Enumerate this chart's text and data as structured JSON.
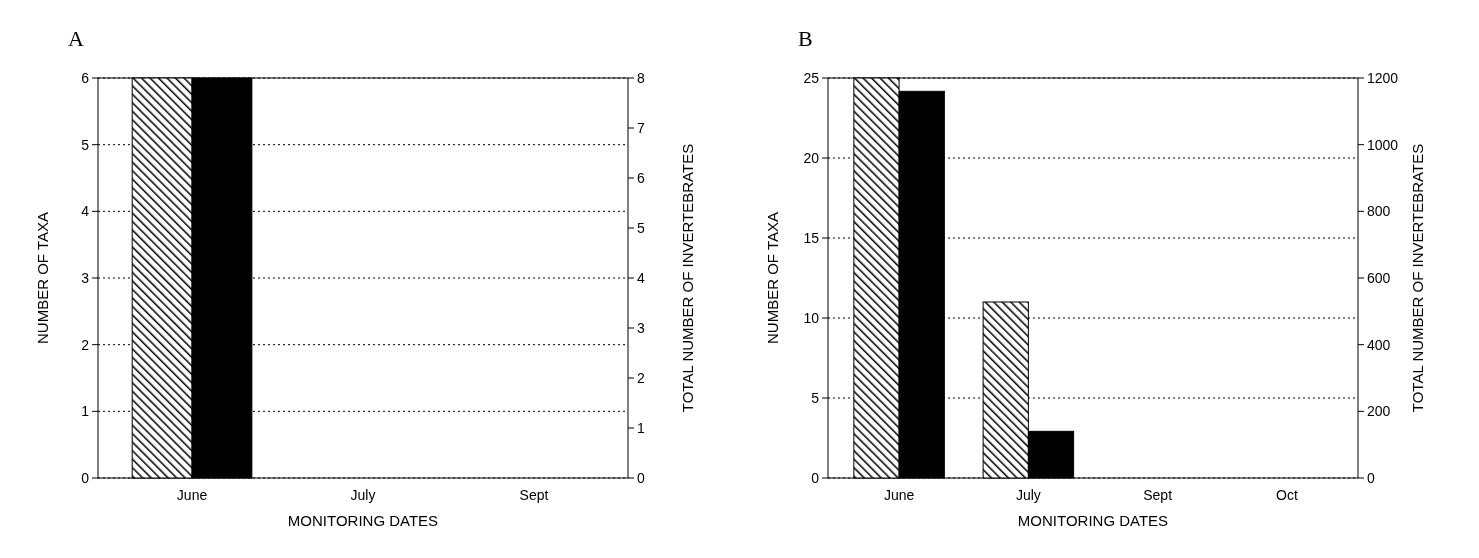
{
  "chart_data": [
    {
      "type": "bar",
      "title": "A",
      "xlabel": "MONITORING DATES",
      "ylabel": "NUMBER OF TAXA",
      "y2label": "TOTAL NUMBER OF INVERTEBRATES",
      "categories": [
        "June",
        "July",
        "Sept"
      ],
      "series": [
        {
          "color": "#000000",
          "values": [
            6,
            0,
            0
          ]
        },
        {
          "color": "#000000",
          "axis": "y2",
          "values": [
            8,
            0,
            0
          ]
        }
      ],
      "ylim": [
        0,
        6
      ],
      "yticks": [
        0,
        1,
        2,
        3,
        4,
        5,
        6
      ],
      "y2lim": [
        0,
        8
      ],
      "y2ticks": [
        0,
        1,
        2,
        3,
        4,
        5,
        6,
        7,
        8
      ],
      "grid": "y"
    },
    {
      "type": "bar",
      "title": "B",
      "xlabel": "MONITORING DATES",
      "ylabel": "NUMBER OF TAXA",
      "y2label": "TOTAL NUMBER OF INVERTEBRATES",
      "categories": [
        "June",
        "July",
        "Sept",
        "Oct"
      ],
      "series": [
        {
          "color": "#000000",
          "values": [
            25,
            11,
            0,
            0
          ]
        },
        {
          "color": "#000000",
          "axis": "y2",
          "values": [
            1160,
            140,
            0,
            0
          ]
        }
      ],
      "ylim": [
        0,
        25
      ],
      "yticks": [
        0,
        5,
        10,
        15,
        20,
        25
      ],
      "y2lim": [
        0,
        1200
      ],
      "y2ticks": [
        0,
        200,
        400,
        600,
        800,
        1000,
        1200
      ],
      "grid": "y"
    }
  ]
}
